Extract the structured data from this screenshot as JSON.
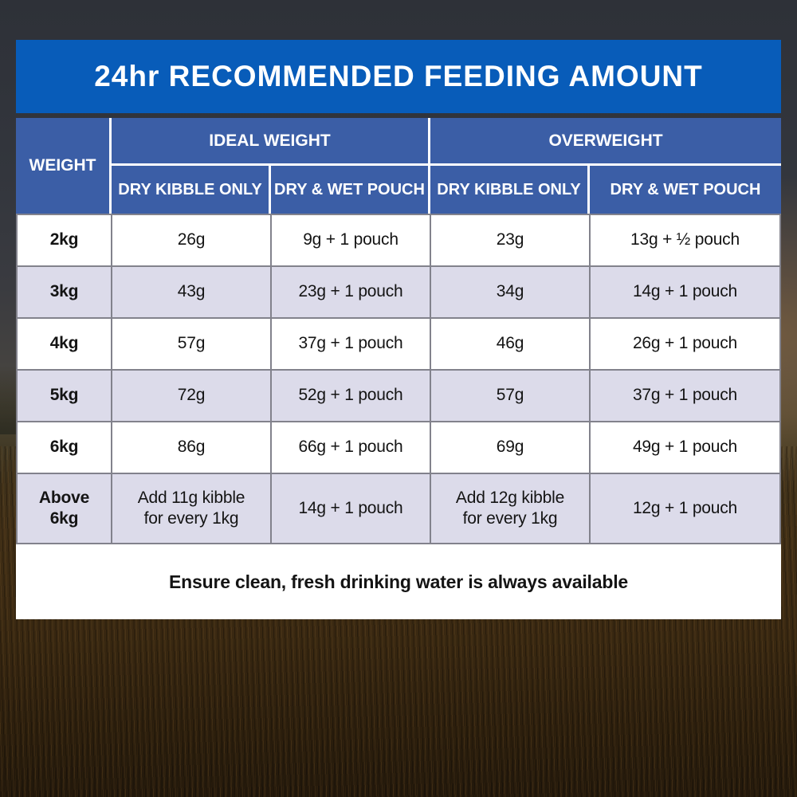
{
  "title": "24hr RECOMMENDED FEEDING AMOUNT",
  "table": {
    "weight_header": "WEIGHT",
    "group_headers": [
      "IDEAL WEIGHT",
      "OVERWEIGHT"
    ],
    "sub_headers": [
      "DRY KIBBLE ONLY",
      "DRY & WET POUCH",
      "DRY KIBBLE ONLY",
      "DRY & WET POUCH"
    ],
    "rows": [
      {
        "weight": "2kg",
        "cells": [
          "26g",
          "9g + 1 pouch",
          "23g",
          "13g + ½ pouch"
        ]
      },
      {
        "weight": "3kg",
        "cells": [
          "43g",
          "23g + 1 pouch",
          "34g",
          "14g + 1 pouch"
        ]
      },
      {
        "weight": "4kg",
        "cells": [
          "57g",
          "37g + 1 pouch",
          "46g",
          "26g + 1 pouch"
        ]
      },
      {
        "weight": "5kg",
        "cells": [
          "72g",
          "52g + 1 pouch",
          "57g",
          "37g + 1 pouch"
        ]
      },
      {
        "weight": "6kg",
        "cells": [
          "86g",
          "66g + 1 pouch",
          "69g",
          "49g + 1 pouch"
        ]
      },
      {
        "weight": "Above\n6kg",
        "cells": [
          "Add 11g kibble\nfor every 1kg",
          "14g + 1 pouch",
          "Add 12g kibble\nfor every 1kg",
          "12g + 1 pouch"
        ]
      }
    ],
    "note": "Ensure clean, fresh drinking water is always available"
  },
  "colors": {
    "banner_blue": "#085CB9",
    "header_blue": "#3B5EA6",
    "row_white": "#FFFFFF",
    "row_lavender": "#DCDBEA",
    "grid_line": "#82828C",
    "text_dark": "#141414",
    "text_white": "#FFFFFF"
  },
  "chart_data": {
    "type": "table",
    "title": "24hr RECOMMENDED FEEDING AMOUNT",
    "columns": [
      "WEIGHT",
      "IDEAL WEIGHT — DRY KIBBLE ONLY",
      "IDEAL WEIGHT — DRY & WET POUCH",
      "OVERWEIGHT — DRY KIBBLE ONLY",
      "OVERWEIGHT — DRY & WET POUCH"
    ],
    "rows": [
      [
        "2kg",
        "26g",
        "9g + 1 pouch",
        "23g",
        "13g + ½ pouch"
      ],
      [
        "3kg",
        "43g",
        "23g + 1 pouch",
        "34g",
        "14g + 1 pouch"
      ],
      [
        "4kg",
        "57g",
        "37g + 1 pouch",
        "46g",
        "26g + 1 pouch"
      ],
      [
        "5kg",
        "72g",
        "52g + 1 pouch",
        "57g",
        "37g + 1 pouch"
      ],
      [
        "6kg",
        "86g",
        "66g + 1 pouch",
        "69g",
        "49g + 1 pouch"
      ],
      [
        "Above 6kg",
        "Add 11g kibble for every 1kg",
        "14g + 1 pouch",
        "Add 12g kibble for every 1kg",
        "12g + 1 pouch"
      ]
    ],
    "note": "Ensure clean, fresh drinking water is always available"
  }
}
